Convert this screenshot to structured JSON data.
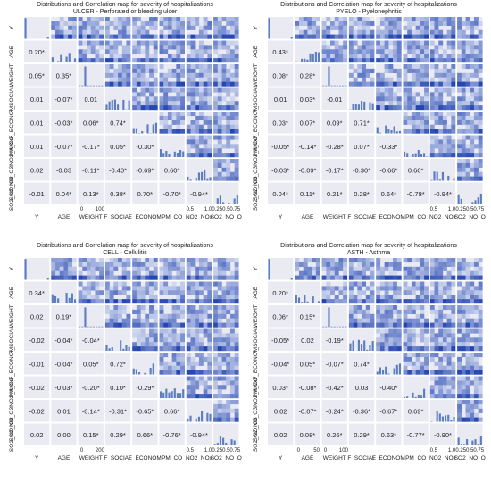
{
  "chart_data": [
    {
      "type": "heatmap",
      "title": "Distributions and Correlation map for severity of hospitalizations",
      "subtitle": "ULCER - Perforated or bleeding ulcer",
      "variables": [
        "Y",
        "AGE",
        "WEIGHT",
        "F_SOCIAL",
        "F_ECONOM",
        "PM_CO",
        "NO2_NOx",
        "SO2_NO_O3"
      ],
      "x_labels": [
        "Y",
        "AGE",
        "WEIGHT",
        "F_SOCIAL",
        "F_ECONOM",
        "PM_CO",
        "NO2_NOx",
        "SO2_NO_O"
      ],
      "y_labels": [
        "Y",
        "AGE",
        "WEIGHT",
        "F_SOCIAL",
        "F_ECONOM",
        "PM_CO",
        "SO2_NO_O3NO2_NOx",
        "SO2_NO_O3"
      ],
      "x_tick_labels": [
        {
          "col": 2,
          "ticks": [
            "0",
            "100"
          ]
        },
        {
          "col": 6,
          "ticks": [
            "0.5",
            "1.0"
          ]
        },
        {
          "col": 7,
          "ticks": [
            "0.250.50.75"
          ]
        }
      ],
      "corr": [
        [
          null,
          null,
          null,
          null,
          null,
          null,
          null,
          null
        ],
        [
          "0.20*",
          null,
          null,
          null,
          null,
          null,
          null,
          null
        ],
        [
          "0.05*",
          "0.35*",
          null,
          null,
          null,
          null,
          null,
          null
        ],
        [
          "0.01",
          "-0.07*",
          "0.01",
          null,
          null,
          null,
          null,
          null
        ],
        [
          "0.01",
          "-0.03*",
          "0.06*",
          "0.74*",
          null,
          null,
          null,
          null
        ],
        [
          "0.01",
          "-0.07*",
          "-0.17*",
          "0.05*",
          "-0.30*",
          null,
          null,
          null
        ],
        [
          "0.02",
          "-0.03",
          "-0.11*",
          "-0.40*",
          "-0.69*",
          "0.60*",
          null,
          null
        ],
        [
          "-0.01",
          "0.04*",
          "0.13*",
          "0.38*",
          "0.70*",
          "-0.70*",
          "-0.94*",
          null
        ]
      ]
    },
    {
      "type": "heatmap",
      "title": "Distributions and Correlation map for severity of hospitalizations",
      "subtitle": "PYELO - Pyelonephritis",
      "variables": [
        "Y",
        "AGE",
        "WEIGHT",
        "F_SOCIAL",
        "F_ECONOM",
        "PM_CO",
        "NO2_NOx",
        "SO2_NO_O3"
      ],
      "x_labels": [
        "Y",
        "AGE",
        "WEIGHT",
        "F_SOCIAL",
        "F_ECONOM",
        "PM_CO",
        "NO2_NOx",
        "SO2_NO_O"
      ],
      "y_labels": [
        "Y",
        "AGE",
        "WEIGHT",
        "F_SOCIAL",
        "F_ECONOM",
        "PM_CO",
        "SO2_NO_O3NO2_NOx",
        "SO2_NO_O3"
      ],
      "x_tick_labels": [
        {
          "col": 6,
          "ticks": [
            "0.5",
            "1.0"
          ]
        },
        {
          "col": 7,
          "ticks": [
            "0.250.50.75"
          ]
        }
      ],
      "corr": [
        [
          null,
          null,
          null,
          null,
          null,
          null,
          null,
          null
        ],
        [
          "0.43*",
          null,
          null,
          null,
          null,
          null,
          null,
          null
        ],
        [
          "0.08*",
          "0.28*",
          null,
          null,
          null,
          null,
          null,
          null
        ],
        [
          "0.01",
          "0.03*",
          "-0.01",
          null,
          null,
          null,
          null,
          null
        ],
        [
          "0.03*",
          "0.07*",
          "0.09*",
          "0.71*",
          null,
          null,
          null,
          null
        ],
        [
          "-0.05*",
          "-0.14*",
          "-0.28*",
          "0.07*",
          "-0.33*",
          null,
          null,
          null
        ],
        [
          "-0.03*",
          "-0.09*",
          "-0.17*",
          "-0.30*",
          "-0.66*",
          "0.66*",
          null,
          null
        ],
        [
          "0.04*",
          "0.11*",
          "0.21*",
          "0.28*",
          "0.64*",
          "-0.78*",
          "-0.94*",
          null
        ]
      ]
    },
    {
      "type": "heatmap",
      "title": "Distributions and Correlation map for severity of hospitalizations",
      "subtitle": "CELL - Cellulitis",
      "variables": [
        "Y",
        "AGE",
        "WEIGHT",
        "F_SOCIAL",
        "F_ECONOM",
        "PM_CO",
        "NO2_NOx",
        "SO2_NO_O3"
      ],
      "x_labels": [
        "Y",
        "AGE",
        "WEIGHT",
        "F_SOCIAL",
        "F_ECONOM",
        "PM_CO",
        "NO2_NOx",
        "SO2_NO_O"
      ],
      "y_labels": [
        "Y",
        "AGE",
        "WEIGHT",
        "F_SOCIAL",
        "F_ECONOM",
        "PM_CO",
        "SO2_NO_O3NO2_NOx",
        "SO2_NO_O3"
      ],
      "x_tick_labels": [
        {
          "col": 2,
          "ticks": [
            "0",
            "200"
          ]
        },
        {
          "col": 6,
          "ticks": [
            "0.5",
            "1.0"
          ]
        },
        {
          "col": 7,
          "ticks": [
            "0.250.50.75"
          ]
        }
      ],
      "corr": [
        [
          null,
          null,
          null,
          null,
          null,
          null,
          null,
          null
        ],
        [
          "0.34*",
          null,
          null,
          null,
          null,
          null,
          null,
          null
        ],
        [
          "0.02",
          "0.19*",
          null,
          null,
          null,
          null,
          null,
          null
        ],
        [
          "-0.02",
          "-0.04*",
          "-0.04*",
          null,
          null,
          null,
          null,
          null
        ],
        [
          "-0.01",
          "-0.04*",
          "0.05*",
          "0.72*",
          null,
          null,
          null,
          null
        ],
        [
          "-0.02",
          "-0.03*",
          "-0.20*",
          "0.10*",
          "-0.29*",
          null,
          null,
          null
        ],
        [
          "-0.02",
          "0.01",
          "-0.14*",
          "-0.31*",
          "-0.65*",
          "0.66*",
          null,
          null
        ],
        [
          "0.02",
          "0.00",
          "0.15*",
          "0.29*",
          "0.66*",
          "-0.76*",
          "-0.94*",
          null
        ]
      ]
    },
    {
      "type": "heatmap",
      "title": "Distributions and Correlation map for severity of hospitalizations",
      "subtitle": "ASTH - Asthma",
      "variables": [
        "Y",
        "AGE",
        "WEIGHT",
        "F_SOCIAL",
        "F_ECONOM",
        "PM_CO",
        "NO2_NOx",
        "SO2_NO_O3"
      ],
      "x_labels": [
        "Y",
        "AGE",
        "WEIGHT",
        "F_SOCIAL",
        "F_ECONOM",
        "PM_CO",
        "NO2_NOx",
        "SO2_NO_O"
      ],
      "y_labels": [
        "Y",
        "AGE",
        "WEIGHT",
        "F_SOCIAL",
        "F_ECONOM",
        "PM_CO",
        "SO2_NO_O3NO2_NOx",
        "SO2_NO_O3"
      ],
      "x_tick_labels": [
        {
          "col": 1,
          "ticks": [
            "0",
            "50"
          ]
        },
        {
          "col": 2,
          "ticks": [
            "0",
            "100"
          ]
        },
        {
          "col": 6,
          "ticks": [
            "0.5",
            "1.0"
          ]
        },
        {
          "col": 7,
          "ticks": [
            "0.250.50.75"
          ]
        }
      ],
      "corr": [
        [
          null,
          null,
          null,
          null,
          null,
          null,
          null,
          null
        ],
        [
          "0.20*",
          null,
          null,
          null,
          null,
          null,
          null,
          null
        ],
        [
          "0.06*",
          "0.15*",
          null,
          null,
          null,
          null,
          null,
          null
        ],
        [
          "-0.05*",
          "0.02",
          "-0.19*",
          null,
          null,
          null,
          null,
          null
        ],
        [
          "-0.04*",
          "0.05*",
          "-0.07*",
          "0.74*",
          null,
          null,
          null,
          null
        ],
        [
          "0.03*",
          "-0.08*",
          "-0.42*",
          "0.03",
          "-0.40*",
          null,
          null,
          null
        ],
        [
          "0.02",
          "-0.07*",
          "-0.24*",
          "-0.36*",
          "-0.67*",
          "0.69*",
          null,
          null
        ],
        [
          "0.02",
          "0.08*",
          "0.26*",
          "0.29*",
          "0.63*",
          "-0.77*",
          "-0.90*",
          null
        ]
      ]
    }
  ]
}
